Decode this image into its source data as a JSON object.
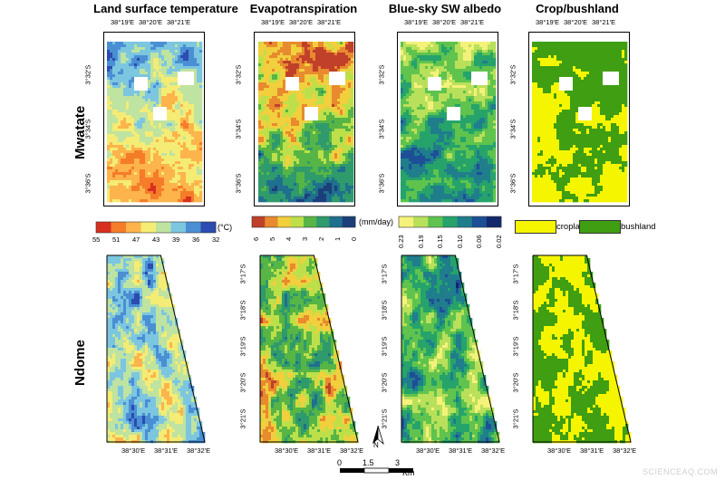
{
  "columns": [
    {
      "key": "lst",
      "title": "Land surface temperature"
    },
    {
      "key": "et",
      "title": "Evapotranspiration"
    },
    {
      "key": "albedo",
      "title": "Blue-sky SW albedo"
    },
    {
      "key": "crop",
      "title": "Crop/bushland"
    }
  ],
  "rows": {
    "top": "Mwatate",
    "bottom": "Ndome"
  },
  "mwatate_axes": {
    "x_ticks": [
      "38°19'E",
      "38°20'E",
      "38°21'E"
    ],
    "y_ticks": [
      "3°32'S",
      "3°34'S",
      "3°36'S"
    ]
  },
  "ndome_axes": {
    "x_ticks": [
      "38°30'E",
      "38°31'E",
      "38°32'E"
    ],
    "y_ticks": [
      "3°17'S",
      "3°18'S",
      "3°19'S",
      "3°20'S",
      "3°21'S"
    ]
  },
  "legends": {
    "lst": {
      "ticks": [
        "55",
        "51",
        "47",
        "43",
        "39",
        "36",
        "32"
      ],
      "unit": "(°C)",
      "colors": [
        "#d7301f",
        "#f57c29",
        "#fdb44b",
        "#f4ec75",
        "#bfe3a0",
        "#7cc6e0",
        "#4a8fd4",
        "#2b4cb0"
      ]
    },
    "et": {
      "ticks": [
        "6",
        "5",
        "4",
        "3",
        "2",
        "1",
        "0"
      ],
      "unit": "(mm/day)",
      "colors": [
        "#c0402a",
        "#e88a2e",
        "#f1cf3d",
        "#bde04a",
        "#57b545",
        "#2f9a6c",
        "#1f6f8e",
        "#1b3f7a"
      ]
    },
    "albedo": {
      "ticks": [
        "0.23",
        "0.19",
        "0.15",
        "0.10",
        "0.06",
        "0.02"
      ],
      "colors": [
        "#f4f27a",
        "#b9e05a",
        "#5fc34e",
        "#26a36b",
        "#1f7d8c",
        "#1d4f97",
        "#13276b"
      ]
    },
    "crop": {
      "items": [
        {
          "label": "cropland",
          "color": "#f5f500"
        },
        {
          "label": "bushland",
          "color": "#3f9e12"
        }
      ]
    }
  },
  "scalebar": {
    "labels": [
      "0",
      "1.5",
      "3"
    ],
    "unit": "Km"
  },
  "north_arrow": "N",
  "watermark": "SCIENCEAQ.COM"
}
